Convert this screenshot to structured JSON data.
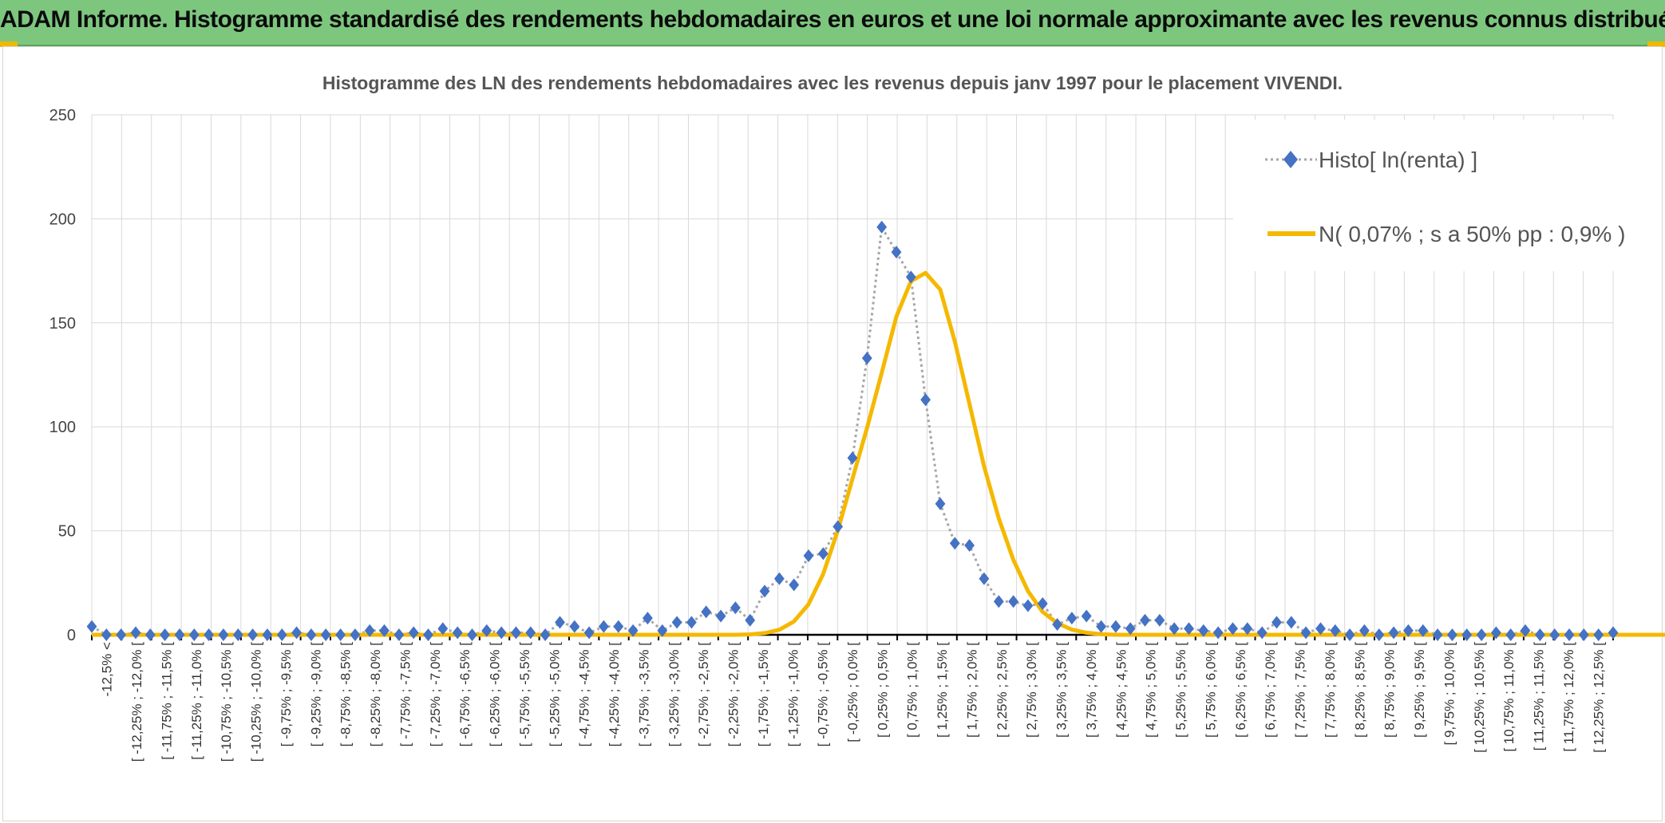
{
  "banner": {
    "title": "ADAM Informe. Histogramme standardisé des rendements hebdomadaires en euros et une loi normale approximante avec les revenus connus distribués"
  },
  "colors": {
    "banner_bg": "#7dc67e",
    "histo_marker": "#4472c4",
    "histo_line": "#a6a6a6",
    "normal_line": "#f5b800",
    "grid": "#d9d9d9"
  },
  "chart_data": {
    "type": "line",
    "title": "Histogramme des LN des rendements hebdomadaires avec les revenus depuis janv 1997 pour le placement VIVENDI.",
    "xlabel": "",
    "ylabel": "",
    "ylim": [
      0,
      250
    ],
    "yticks": [
      "0",
      "50",
      "100",
      "150",
      "200",
      "250"
    ],
    "grid": true,
    "legend_position": "top-right",
    "x_labels": [
      "-12,5% <",
      "[ -12,25% ; -12,0% [",
      "[ -11,75% ; -11,5% [",
      "[ -11,25% ; -11,0% [",
      "[ -10,75% ; -10,5% [",
      "[ -10,25% ; -10,0% [",
      "[ -9,75% ; -9,5% [",
      "[ -9,25% ; -9,0% [",
      "[ -8,75% ; -8,5% [",
      "[ -8,25% ; -8,0% [",
      "[ -7,75% ; -7,5% [",
      "[ -7,25% ; -7,0% [",
      "[ -6,75% ; -6,5% [",
      "[ -6,25% ; -6,0% [",
      "[ -5,75% ; -5,5% [",
      "[ -5,25% ; -5,0% [",
      "[ -4,75% ; -4,5% [",
      "[ -4,25% ; -4,0% [",
      "[ -3,75% ; -3,5% [",
      "[ -3,25% ; -3,0% [",
      "[ -2,75% ; -2,5% [",
      "[ -2,25% ; -2,0% [",
      "[ -1,75% ; -1,5% [",
      "[ -1,25% ; -1,0% [",
      "[ -0,75% ; -0,5% [",
      "[ -0,25% ; 0,0% [",
      "[ 0,25% ; 0,5% [",
      "[ 0,75% ; 1,0% [",
      "[ 1,25% ; 1,5% [",
      "[ 1,75% ; 2,0% [",
      "[ 2,25% ; 2,5% [",
      "[ 2,75% ; 3,0% [",
      "[ 3,25% ; 3,5% [",
      "[ 3,75% ; 4,0% [",
      "[ 4,25% ; 4,5% [",
      "[ 4,75% ; 5,0% [",
      "[ 5,25% ; 5,5% [",
      "[ 5,75% ; 6,0% [",
      "[ 6,25% ; 6,5% [",
      "[ 6,75% ; 7,0% [",
      "[ 7,25% ; 7,5% [",
      "[ 7,75% ; 8,0% [",
      "[ 8,25% ; 8,5% [",
      "[ 8,75% ; 9,0% [",
      "[ 9,25% ; 9,5% [",
      "[ 9,75% ; 10,0% [",
      "[ 10,25% ; 10,5% [",
      "[ 10,75% ; 11,0% [",
      "[ 11,25% ; 11,5% [",
      "[ 11,75% ; 12,0% [",
      "[ 12,25% ; 12,5% ["
    ],
    "series": [
      {
        "name": "Histo[ ln(renta) ]",
        "style": "dotted-line-diamond-markers",
        "values": [
          4,
          0,
          0,
          1,
          0,
          0,
          0,
          0,
          0,
          0,
          0,
          0,
          0,
          0,
          1,
          0,
          0,
          0,
          0,
          2,
          2,
          0,
          1,
          0,
          3,
          1,
          0,
          2,
          1,
          1,
          1,
          0,
          6,
          4,
          1,
          4,
          4,
          2,
          8,
          2,
          6,
          6,
          11,
          9,
          13,
          7,
          21,
          27,
          24,
          38,
          39,
          52,
          85,
          133,
          196,
          184,
          172,
          113,
          63,
          44,
          43,
          27,
          16,
          16,
          14,
          15,
          5,
          8,
          9,
          4,
          4,
          3,
          7,
          7,
          3,
          3,
          2,
          1,
          3,
          3,
          1,
          6,
          6,
          1,
          3,
          2,
          0,
          2,
          0,
          1,
          2,
          2,
          0,
          0,
          0,
          0,
          1,
          0,
          2,
          0,
          0,
          0,
          0,
          0,
          1
        ]
      },
      {
        "name": "N( 0,07% ; s a 50% pp : 0,9% )",
        "style": "solid-line",
        "values": [
          0,
          0,
          0,
          0,
          0,
          0,
          0,
          0,
          0,
          0,
          0,
          0,
          0,
          0,
          0,
          0,
          0,
          0,
          0,
          0,
          0,
          0,
          0,
          0,
          0,
          0,
          0,
          0,
          0,
          0,
          0,
          0,
          0,
          0,
          0,
          0,
          0,
          0,
          0,
          0,
          0,
          0,
          0,
          0,
          0,
          0.2,
          0.8,
          2.4,
          6.4,
          14.7,
          29.2,
          50.2,
          75,
          99.5,
          126,
          153,
          170,
          174,
          166,
          141,
          111,
          81,
          56,
          36,
          21,
          11,
          5.6,
          2.5,
          1,
          0.3,
          0,
          0,
          0,
          0,
          0,
          0,
          0,
          0,
          0,
          0,
          0,
          0,
          0,
          0,
          0,
          0,
          0,
          0,
          0,
          0,
          0,
          0,
          0,
          0,
          0,
          0,
          0,
          0,
          0,
          0,
          0,
          0,
          0,
          0,
          0,
          0,
          0,
          0,
          0,
          0,
          0,
          0,
          0,
          0,
          0,
          0,
          0
        ]
      }
    ]
  }
}
